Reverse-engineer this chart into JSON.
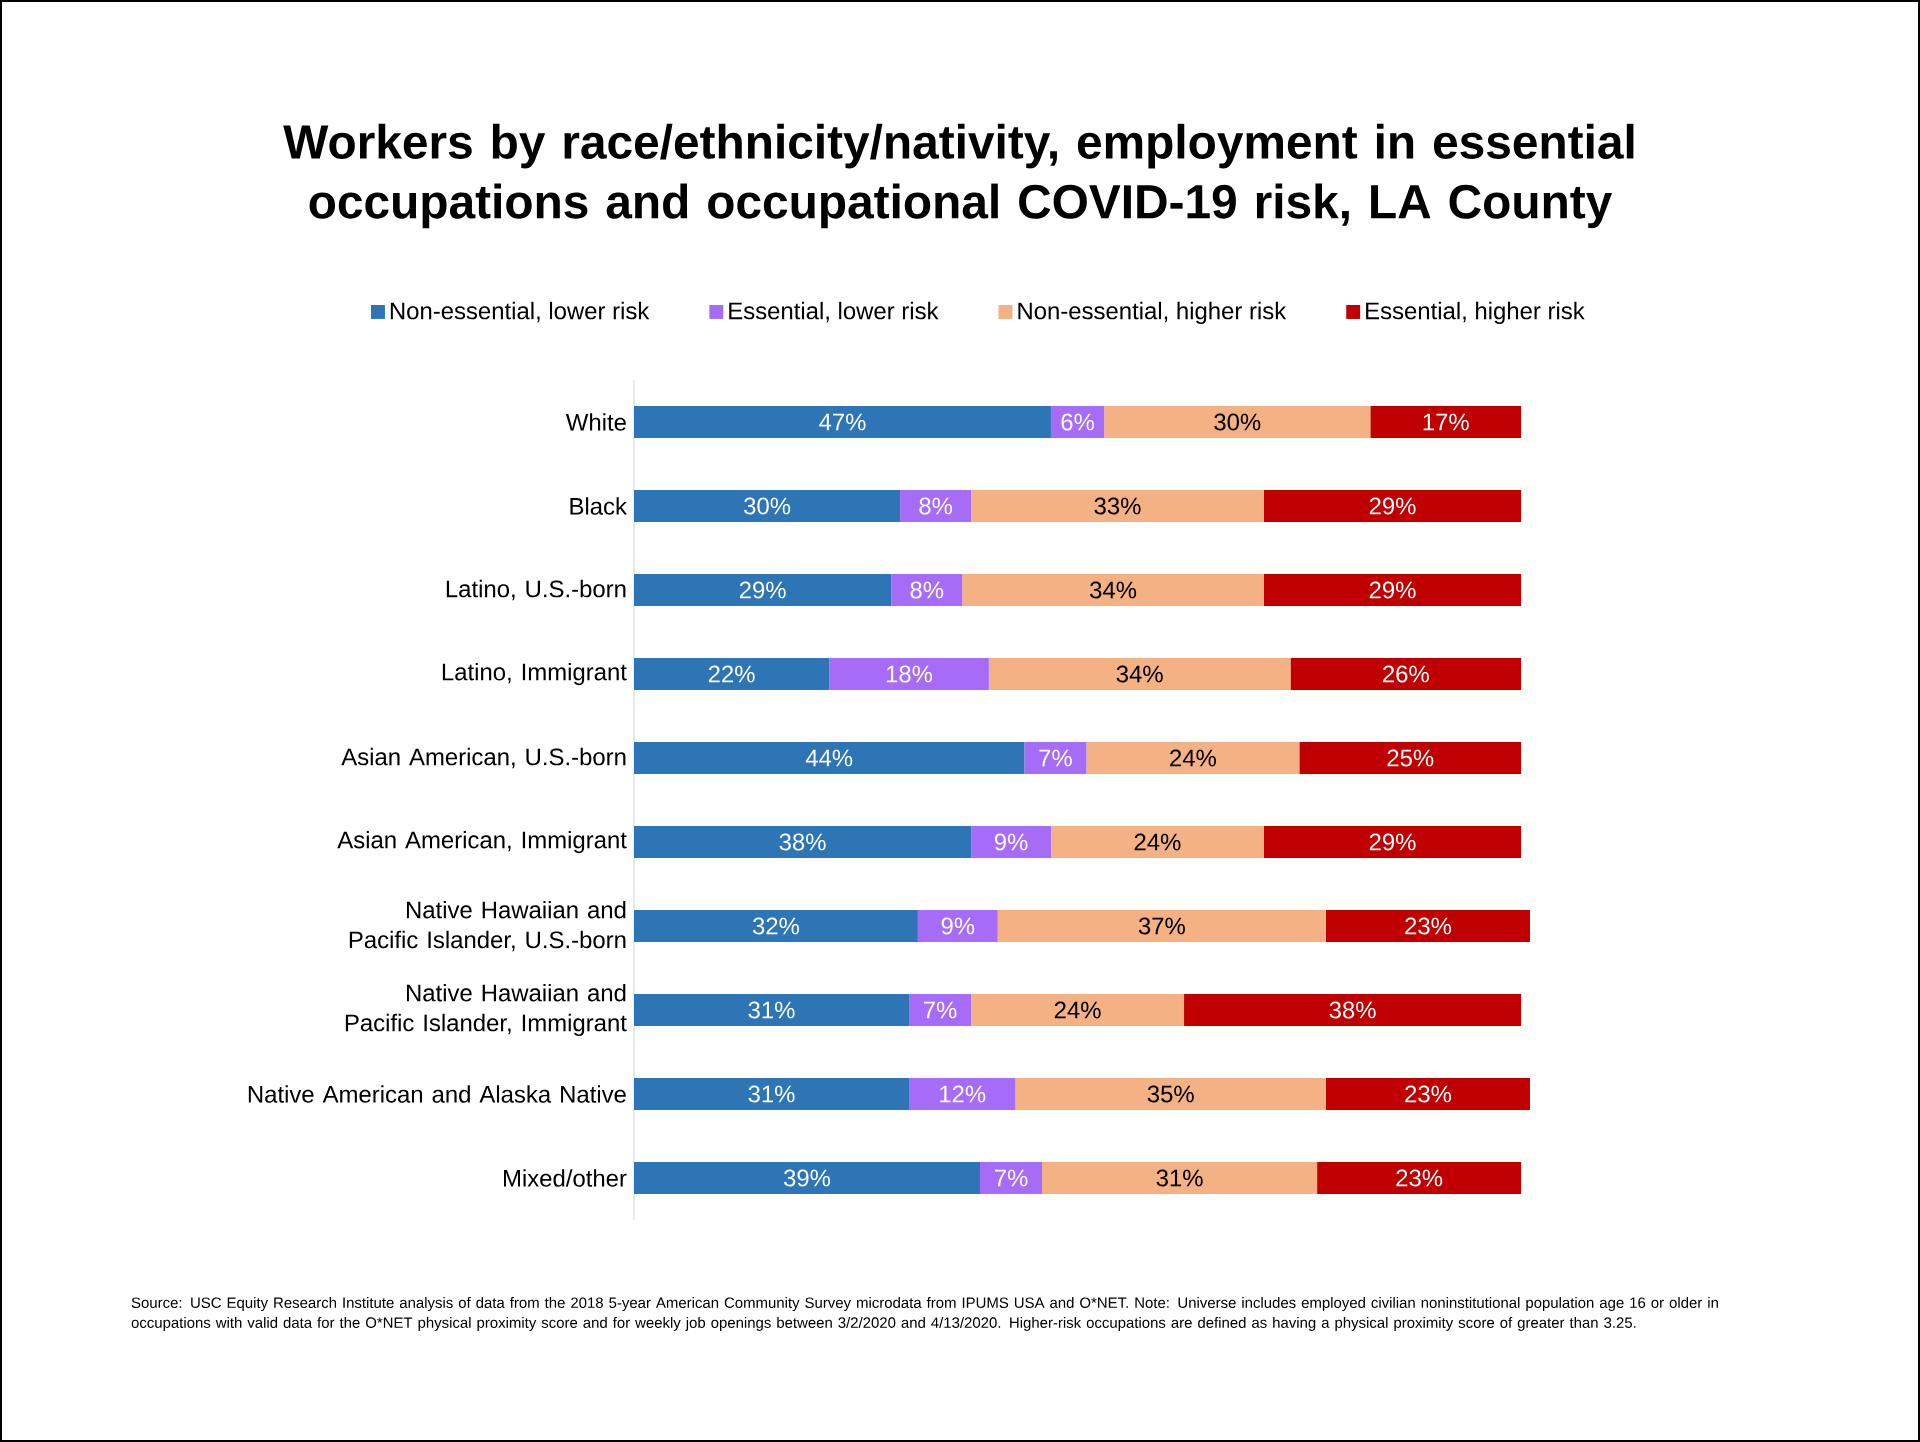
{
  "chart_data": {
    "type": "bar",
    "orientation": "horizontal",
    "stacked": true,
    "title": "Workers by race/ethnicity/nativity, employment in essential occupations and occupational COVID-19 risk, LA County",
    "categories": [
      "White",
      "Black",
      "Latino, U.S.-born",
      "Latino, Immigrant",
      "Asian American, U.S.-born",
      "Asian American, Immigrant",
      "Native Hawaiian and Pacific Islander, U.S.-born",
      "Native Hawaiian and Pacific Islander, Immigrant",
      "Native American and Alaska Native",
      "Mixed/other"
    ],
    "series": [
      {
        "name": "Non-essential, lower risk",
        "color": "#2e75b6",
        "values": [
          47,
          30,
          29,
          22,
          44,
          38,
          32,
          31,
          31,
          39
        ],
        "value_labels": [
          "47%",
          "30%",
          "29%",
          "22%",
          "44%",
          "38%",
          "32%",
          "31%",
          "31%",
          "39%"
        ]
      },
      {
        "name": "Essential, lower risk",
        "color": "#a66cf7",
        "values": [
          6,
          8,
          8,
          18,
          7,
          9,
          9,
          7,
          12,
          7
        ],
        "value_labels": [
          "6%",
          "8%",
          "8%",
          "18%",
          "7%",
          "9%",
          "9%",
          "7%",
          "12%",
          "7%"
        ]
      },
      {
        "name": "Non-essential, higher risk",
        "color": "#f4b183",
        "values": [
          30,
          33,
          34,
          34,
          24,
          24,
          37,
          24,
          35,
          31
        ],
        "value_labels": [
          "30%",
          "33%",
          "34%",
          "34%",
          "24%",
          "24%",
          "37%",
          "24%",
          "35%",
          "31%"
        ]
      },
      {
        "name": "Essential, higher risk",
        "color": "#c00000",
        "values": [
          17,
          29,
          29,
          26,
          25,
          29,
          23,
          38,
          23,
          23
        ],
        "value_labels": [
          "17%",
          "29%",
          "29%",
          "26%",
          "25%",
          "29%",
          "23%",
          "38%",
          "23%",
          "23%"
        ]
      }
    ],
    "tick_labels": "y",
    "legend": "top",
    "annotations": [
      "Source: USC Equity Research Institute analysis of data from the 2018 5-year American Community Survey microdata from IPUMS USA and O*NET. Note: Universe includes employed civilian noninstitutional population age 16 or older in occupations with valid data for the O*NET physical proximity score and for weekly job openings between 3/2/2020 and 4/13/2020. Higher-risk occupations are defined as having a physical proximity score of greater than 3.25."
    ]
  }
}
